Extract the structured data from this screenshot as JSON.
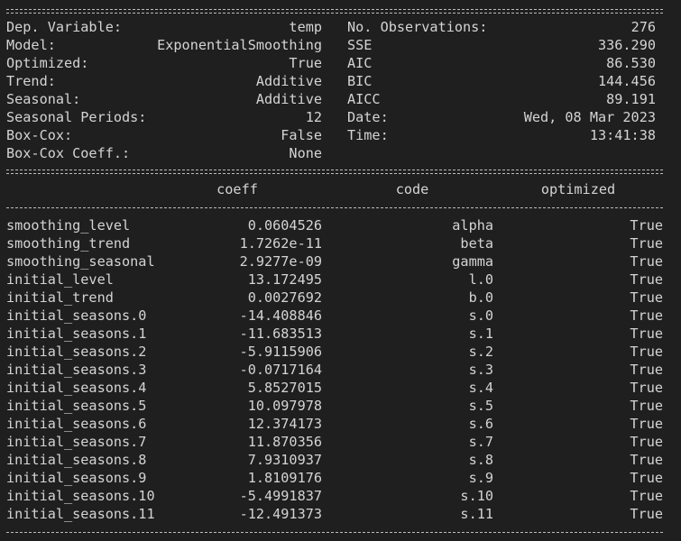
{
  "summary": {
    "rows": [
      [
        "Dep. Variable:",
        "temp",
        "No. Observations:",
        "276"
      ],
      [
        "Model:",
        "ExponentialSmoothing",
        "SSE",
        "336.290"
      ],
      [
        "Optimized:",
        "True",
        "AIC",
        "86.530"
      ],
      [
        "Trend:",
        "Additive",
        "BIC",
        "144.456"
      ],
      [
        "Seasonal:",
        "Additive",
        "AICC",
        "89.191"
      ],
      [
        "Seasonal Periods:",
        "12",
        "Date:",
        "Wed, 08 Mar 2023"
      ],
      [
        "Box-Cox:",
        "False",
        "Time:",
        "13:41:38"
      ],
      [
        "Box-Cox Coeff.:",
        "None"
      ]
    ]
  },
  "params": {
    "header": [
      "coeff",
      "code",
      "optimized"
    ],
    "rows": [
      [
        "smoothing_level",
        "0.0604526",
        "alpha",
        "True"
      ],
      [
        "smoothing_trend",
        "1.7262e-11",
        "beta",
        "True"
      ],
      [
        "smoothing_seasonal",
        "2.9277e-09",
        "gamma",
        "True"
      ],
      [
        "initial_level",
        "13.172495",
        "l.0",
        "True"
      ],
      [
        "initial_trend",
        "0.0027692",
        "b.0",
        "True"
      ],
      [
        "initial_seasons.0",
        "-14.408846",
        "s.0",
        "True"
      ],
      [
        "initial_seasons.1",
        "-11.683513",
        "s.1",
        "True"
      ],
      [
        "initial_seasons.2",
        "-5.9115906",
        "s.2",
        "True"
      ],
      [
        "initial_seasons.3",
        "-0.0717164",
        "s.3",
        "True"
      ],
      [
        "initial_seasons.4",
        "5.8527015",
        "s.4",
        "True"
      ],
      [
        "initial_seasons.5",
        "10.097978",
        "s.5",
        "True"
      ],
      [
        "initial_seasons.6",
        "12.374173",
        "s.6",
        "True"
      ],
      [
        "initial_seasons.7",
        "11.870356",
        "s.7",
        "True"
      ],
      [
        "initial_seasons.8",
        "7.9310937",
        "s.8",
        "True"
      ],
      [
        "initial_seasons.9",
        "1.8109176",
        "s.9",
        "True"
      ],
      [
        "initial_seasons.10",
        "-5.4991837",
        "s.10",
        "True"
      ],
      [
        "initial_seasons.11",
        "-12.491373",
        "s.11",
        "True"
      ]
    ]
  }
}
